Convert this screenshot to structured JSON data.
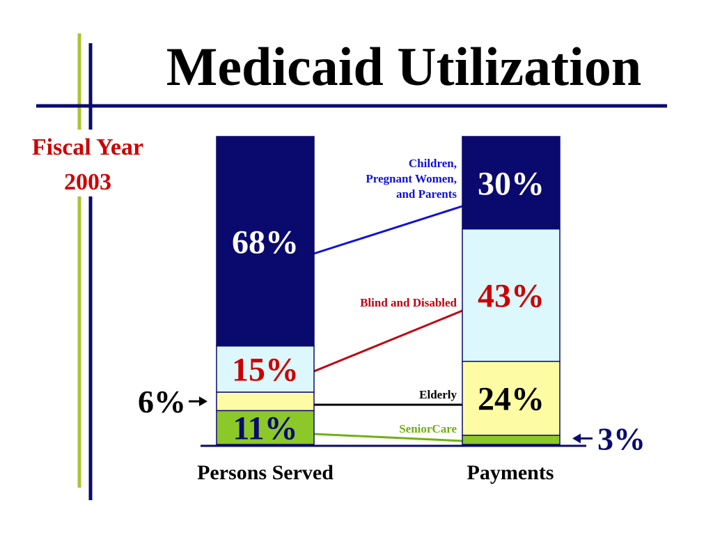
{
  "title": "Medicaid Utilization",
  "subtitle_lines": [
    "Fiscal Year",
    "2003"
  ],
  "colors": {
    "dark_navy": "#0a0a6e",
    "light_cyan": "#dcf8fc",
    "light_yellow": "#fdfca4",
    "lime_green": "#8cc828",
    "deco_lime": "#a9c531",
    "fiscal_red": "#cc0000",
    "callout_blue": "#1010dd",
    "callout_red": "#c00010",
    "callout_green": "#70b010",
    "black": "#000000"
  },
  "chart_data": {
    "type": "bar",
    "stacked": true,
    "percent": true,
    "categories": [
      "Persons Served",
      "Payments"
    ],
    "series": [
      {
        "name": "SeniorCare",
        "values": [
          11,
          3
        ],
        "color": "#8cc828",
        "text_color": "#0a0a6e",
        "labels": [
          "11%",
          "3%"
        ]
      },
      {
        "name": "Elderly",
        "values": [
          6,
          24
        ],
        "color": "#fdfca4",
        "text_color": "#000000",
        "labels": [
          "6%",
          "24%"
        ]
      },
      {
        "name": "Blind and Disabled",
        "values": [
          15,
          43
        ],
        "color": "#dcf8fc",
        "text_color": "#cc0000",
        "labels": [
          "15%",
          "43%"
        ]
      },
      {
        "name": "Children, Pregnant Women, and Parents",
        "values": [
          68,
          30
        ],
        "color": "#0a0a6e",
        "text_color": "#ffffff",
        "labels": [
          "68%",
          "30%"
        ]
      }
    ],
    "callouts": [
      {
        "series": "Children, Pregnant Women, and Parents",
        "lines": [
          "Children,",
          "Pregnant Women,",
          "and Parents"
        ],
        "color": "#1010dd"
      },
      {
        "series": "Blind and Disabled",
        "lines": [
          "Blind and Disabled"
        ],
        "color": "#c00010"
      },
      {
        "series": "Elderly",
        "lines": [
          "Elderly"
        ],
        "color": "#000000"
      },
      {
        "series": "SeniorCare",
        "lines": [
          "SeniorCare"
        ],
        "color": "#70b010"
      }
    ],
    "outside_labels": [
      {
        "category": "Persons Served",
        "series": "Elderly",
        "text": "6%",
        "side": "left",
        "color": "#000000"
      },
      {
        "category": "Payments",
        "series": "SeniorCare",
        "text": "3%",
        "side": "right",
        "color": "#0a0a6e"
      }
    ],
    "ylim": [
      0,
      100
    ],
    "grid": false,
    "legend": "none"
  }
}
